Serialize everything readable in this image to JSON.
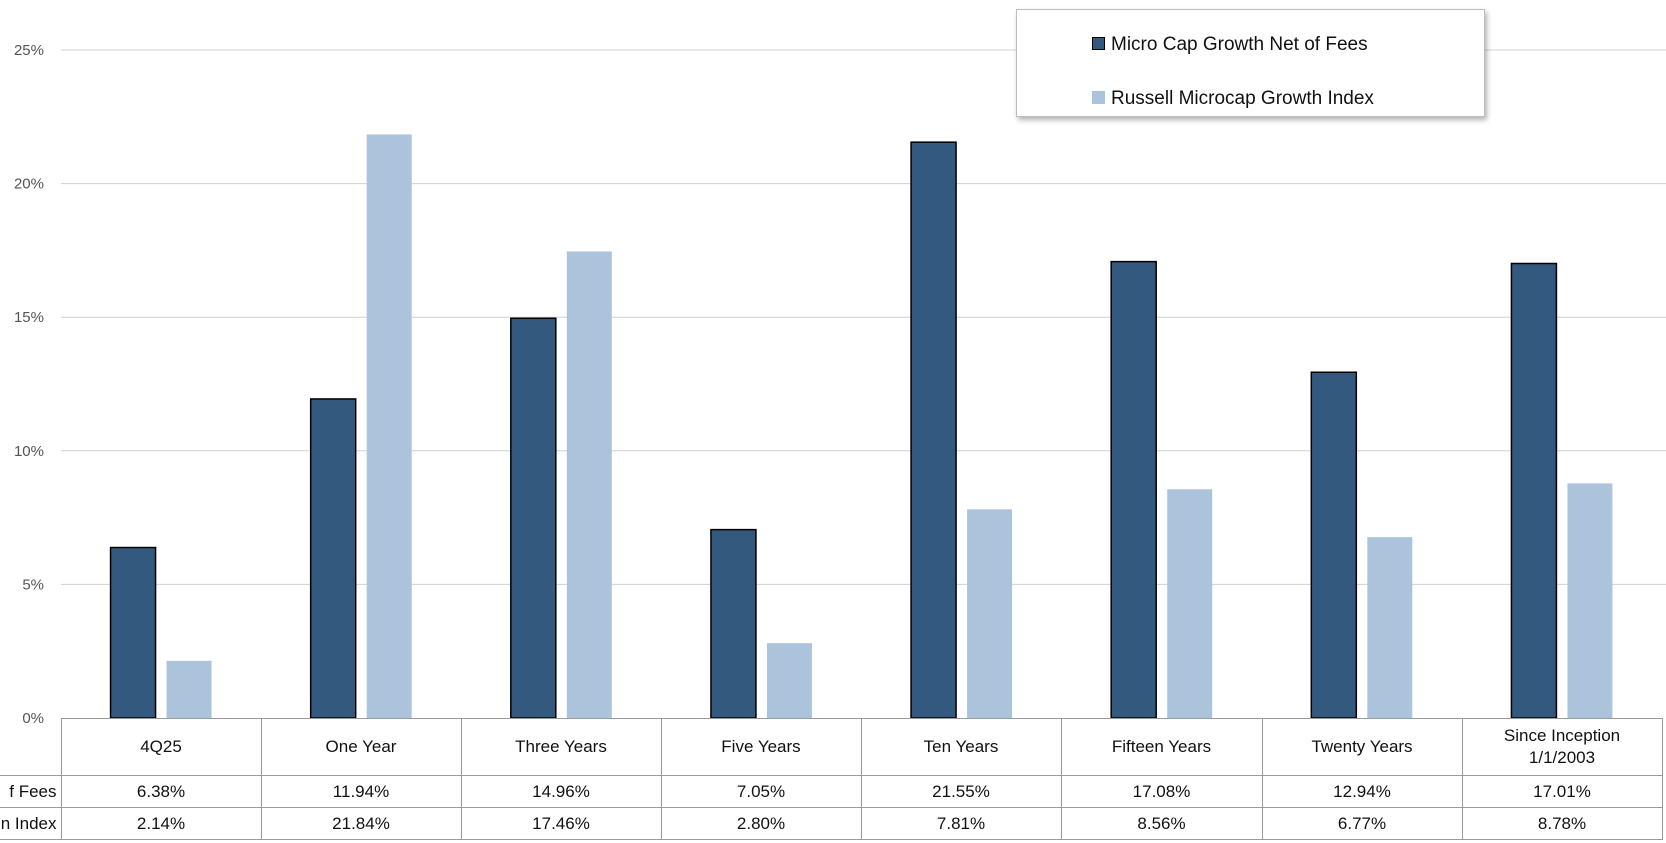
{
  "chart_data": {
    "type": "bar",
    "categories": [
      "4Q25",
      "One Year",
      "Three Years",
      "Five Years",
      "Ten Years",
      "Fifteen Years",
      "Twenty Years",
      "Since Inception 1/1/2003"
    ],
    "category_lines": [
      [
        "4Q25"
      ],
      [
        "One Year"
      ],
      [
        "Three Years"
      ],
      [
        "Five Years"
      ],
      [
        "Ten Years"
      ],
      [
        "Fifteen Years"
      ],
      [
        "Twenty Years"
      ],
      [
        "Since Inception",
        "1/1/2003"
      ]
    ],
    "series": [
      {
        "name": "Micro Cap Growth Net of Fees",
        "color": "#34597e",
        "values": [
          6.38,
          11.94,
          14.96,
          7.05,
          21.55,
          17.08,
          12.94,
          17.01
        ],
        "value_labels": [
          "6.38%",
          "11.94%",
          "14.96%",
          "7.05%",
          "21.55%",
          "17.08%",
          "12.94%",
          "17.01%"
        ]
      },
      {
        "name": "Russell Microcap Growth Index",
        "color": "#abc4dc",
        "values": [
          2.14,
          21.84,
          17.46,
          2.8,
          7.81,
          8.56,
          6.77,
          8.78
        ],
        "value_labels": [
          "2.14%",
          "21.84%",
          "17.46%",
          "2.80%",
          "7.81%",
          "8.56%",
          "6.77%",
          "8.78%"
        ]
      }
    ],
    "row_labels_visible": [
      "f Fees",
      "n Index"
    ],
    "ylim": [
      0,
      25
    ],
    "yticks": [
      0,
      5,
      10,
      15,
      20,
      25
    ],
    "ytick_labels": [
      "0%",
      "5%",
      "10%",
      "15%",
      "20%",
      "25%"
    ],
    "grid": true,
    "legend_position": "top-right",
    "data_table": true
  }
}
